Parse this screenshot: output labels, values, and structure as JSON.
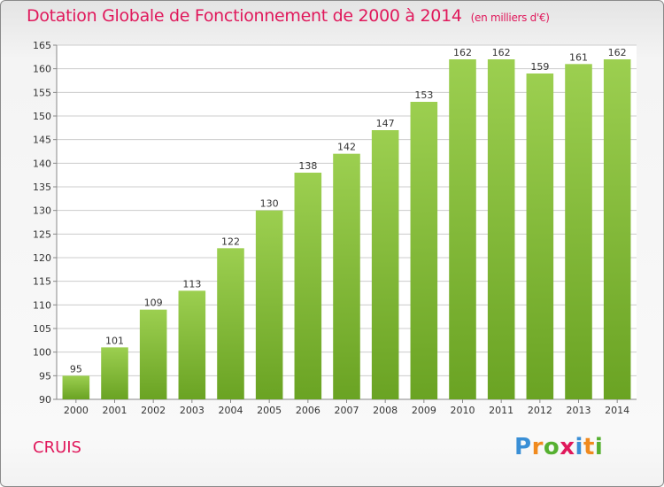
{
  "header": {
    "title": "Dotation Globale de Fonctionnement de 2000 à 2014",
    "unit": "(en milliers d'€)"
  },
  "footer": {
    "commune": "CRUIS",
    "logo": {
      "letters": [
        "P",
        "r",
        "o",
        "x",
        "i",
        "t",
        "i"
      ],
      "colors": [
        "#3a8fd6",
        "#f08a1e",
        "#55b030",
        "#e0185b",
        "#3a8fd6",
        "#f08a1e",
        "#55b030"
      ]
    }
  },
  "colors": {
    "title": "#e0185b",
    "bar_light": "#9ccf50",
    "bar_dark": "#6aa323",
    "grid": "#cccccc",
    "text": "#333333"
  },
  "chart_data": {
    "type": "bar",
    "title": "Dotation Globale de Fonctionnement de 2000 à 2014",
    "xlabel": "",
    "ylabel": "",
    "categories": [
      "2000",
      "2001",
      "2002",
      "2003",
      "2004",
      "2005",
      "2006",
      "2007",
      "2008",
      "2009",
      "2010",
      "2011",
      "2012",
      "2013",
      "2014"
    ],
    "values": [
      95,
      101,
      109,
      113,
      122,
      130,
      138,
      142,
      147,
      153,
      162,
      162,
      159,
      161,
      162
    ],
    "ylim": [
      90,
      165
    ],
    "yticks": [
      90,
      95,
      100,
      105,
      110,
      115,
      120,
      125,
      130,
      135,
      140,
      145,
      150,
      155,
      160,
      165
    ],
    "grid": true,
    "data_labels": true
  }
}
